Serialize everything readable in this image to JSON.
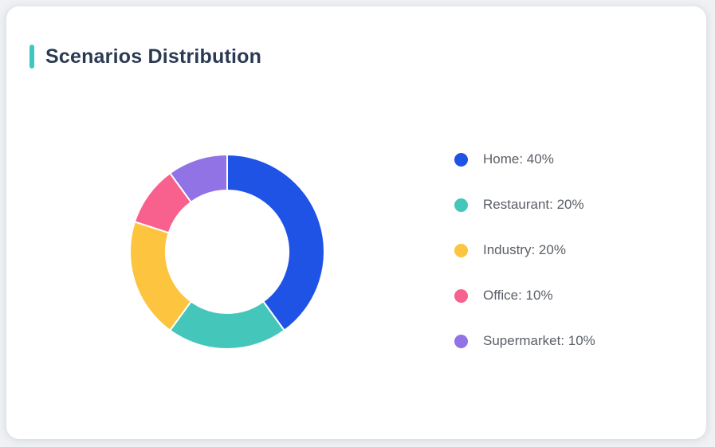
{
  "page": {
    "background": "#eff1f3"
  },
  "card": {
    "background": "#ffffff"
  },
  "header": {
    "title": "Scenarios Distribution",
    "accent_color": "#3cc8c0",
    "title_color": "#2b3a53"
  },
  "legend_style": {
    "text_color": "#5a5f66",
    "position": "right"
  },
  "chart_data": {
    "type": "pie",
    "subtype": "donut",
    "title": "Scenarios Distribution",
    "categories": [
      "Home",
      "Restaurant",
      "Industry",
      "Office",
      "Supermarket"
    ],
    "values": [
      40,
      20,
      20,
      10,
      10
    ],
    "unit": "%",
    "colors": [
      "#1f53e5",
      "#45c6ba",
      "#fdc43f",
      "#f8618e",
      "#9173e6"
    ],
    "start_angle_deg": -90,
    "direction": "clockwise",
    "inner_radius_ratio": 0.63,
    "segment_gap_color": "#ffffff",
    "legend_position": "right",
    "legend_labels": [
      "Home: 40%",
      "Restaurant: 20%",
      "Industry: 20%",
      "Office: 10%",
      "Supermarket: 10%"
    ]
  }
}
